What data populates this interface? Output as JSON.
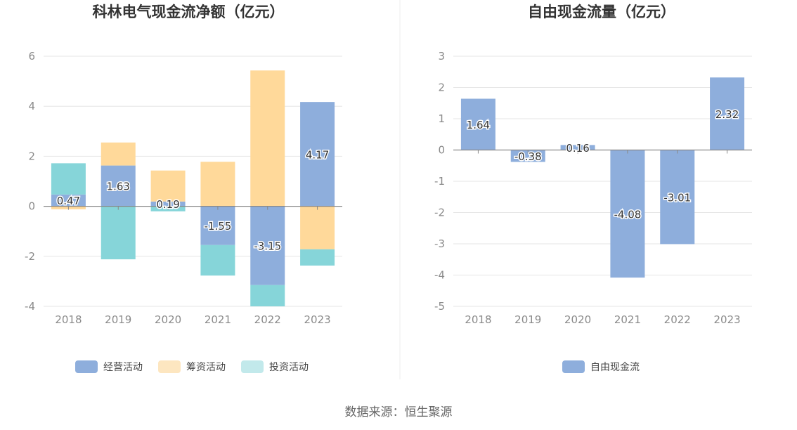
{
  "chart_data": [
    {
      "type": "bar",
      "stacked": true,
      "title": "科林电气现金流净额（亿元）",
      "categories": [
        "2018",
        "2019",
        "2020",
        "2021",
        "2022",
        "2023"
      ],
      "ylim": [
        -4,
        6
      ],
      "yticks": [
        6,
        4,
        2,
        0,
        -2,
        -4
      ],
      "series": [
        {
          "name": "经营活动",
          "color": "#8eaedc",
          "values": [
            0.47,
            1.63,
            0.19,
            -1.55,
            -3.15,
            4.17
          ],
          "show_labels": true
        },
        {
          "name": "筹资活动",
          "color": "#ffd99a",
          "values": [
            -0.12,
            0.92,
            1.24,
            1.78,
            5.43,
            -1.72
          ],
          "show_labels": false
        },
        {
          "name": "投资活动",
          "color": "#86d5d9",
          "values": [
            1.25,
            -2.12,
            -0.2,
            -1.22,
            -0.85,
            -0.65
          ],
          "show_labels": false
        }
      ]
    },
    {
      "type": "bar",
      "title": "自由现金流量（亿元）",
      "categories": [
        "2018",
        "2019",
        "2020",
        "2021",
        "2022",
        "2023"
      ],
      "ylim": [
        -5,
        3
      ],
      "yticks": [
        3,
        2,
        1,
        0,
        -1,
        -2,
        -3,
        -4,
        -5
      ],
      "series": [
        {
          "name": "自由现金流",
          "color": "#8eaedc",
          "values": [
            1.64,
            -0.38,
            0.16,
            -4.08,
            -3.01,
            2.32
          ],
          "show_labels": true
        }
      ]
    }
  ],
  "source": "数据来源：恒生聚源"
}
